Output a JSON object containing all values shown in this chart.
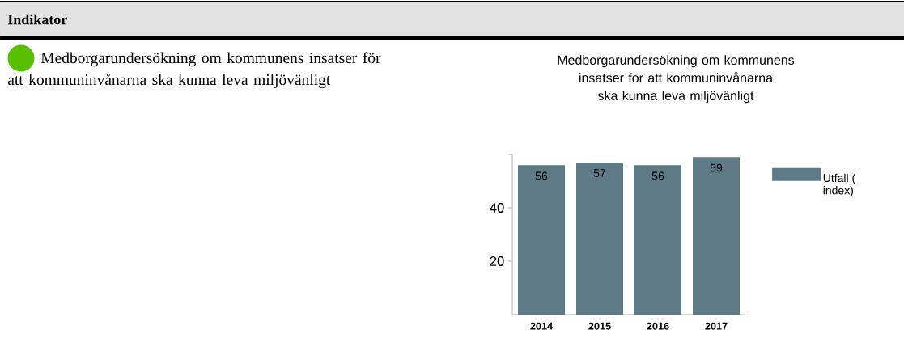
{
  "chart_data": {
    "type": "bar",
    "title": "Medborgarundersökning om kommunens insatser för att kommuninvånarna ska kunna leva miljövänligt",
    "categories": [
      "2014",
      "2015",
      "2016",
      "2017"
    ],
    "series": [
      {
        "name": "Utfall ( index)",
        "color": "#5f7a87",
        "values": [
          56,
          57,
          56,
          59
        ]
      }
    ],
    "ylim": [
      0,
      60
    ],
    "yticks": [
      20,
      40,
      {
        "value": 60,
        "label": null
      }
    ],
    "data_labels": true,
    "legend": "right",
    "grid": false,
    "annotations": [
      "Indikator",
      "Medborgarundersökning om kommunens insatser för att kommuninvånarna ska kunna leva miljövänligt"
    ]
  }
}
